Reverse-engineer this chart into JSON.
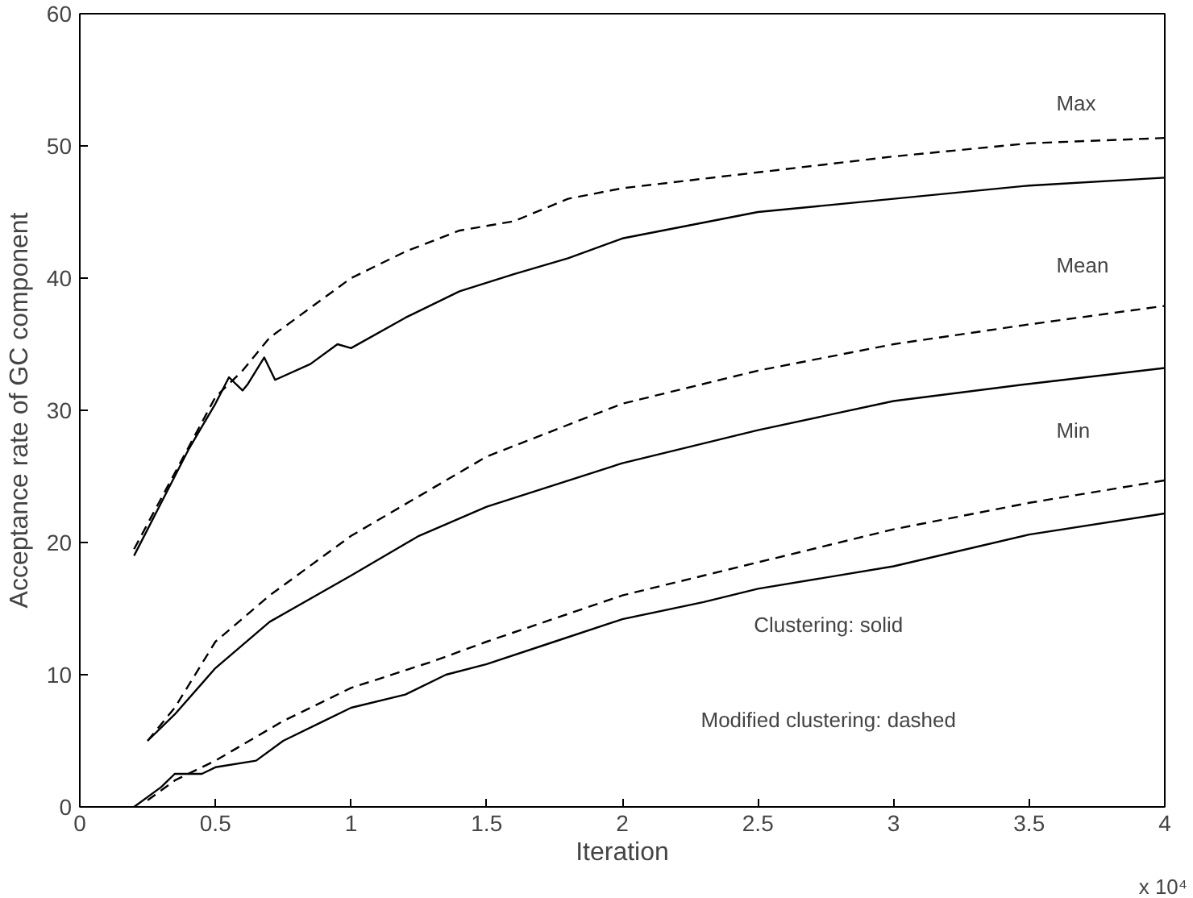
{
  "chart_data": {
    "type": "line",
    "xlabel": "Iteration",
    "ylabel": "Acceptance rate of GC component",
    "xlim": [
      0,
      4
    ],
    "ylim": [
      0,
      60
    ],
    "xticks": [
      0,
      0.5,
      1,
      1.5,
      2,
      2.5,
      3,
      3.5,
      4
    ],
    "yticks": [
      0,
      10,
      20,
      30,
      40,
      50,
      60
    ],
    "grid": false,
    "marker": "none",
    "annotations": [
      "Max",
      "Mean",
      "Min",
      "Clustering: solid",
      "Modified clustering: dashed",
      "x 10⁴"
    ],
    "series": [
      {
        "color": "#000000",
        "line_style": "solid",
        "x": [
          0.2,
          0.3,
          0.4,
          0.5,
          0.55,
          0.6,
          0.62,
          0.68,
          0.72,
          0.85,
          0.95,
          1.0,
          1.2,
          1.4,
          1.6,
          1.8,
          2.0,
          2.5,
          3.0,
          3.5,
          4.0
        ],
        "values": [
          19,
          23,
          27,
          30.5,
          32.5,
          31.5,
          32,
          34,
          32.3,
          33.5,
          35,
          34.7,
          37,
          39,
          40.3,
          41.5,
          43,
          45,
          46,
          47,
          47.6
        ]
      },
      {
        "color": "#000000",
        "line_style": "dashed",
        "x": [
          0.2,
          0.5,
          0.6,
          0.7,
          0.8,
          1.0,
          1.2,
          1.4,
          1.6,
          1.8,
          2.0,
          2.5,
          3.0,
          3.5,
          4.0
        ],
        "values": [
          19.5,
          31,
          33,
          35.5,
          37,
          40,
          42,
          43.6,
          44.3,
          46,
          46.8,
          48,
          49.2,
          50.2,
          50.6
        ]
      },
      {
        "color": "#000000",
        "line_style": "solid",
        "x": [
          0.25,
          0.35,
          0.5,
          0.7,
          1.0,
          1.25,
          1.5,
          2.0,
          2.5,
          3.0,
          3.5,
          4.0
        ],
        "values": [
          5,
          7,
          10.5,
          14,
          17.5,
          20.5,
          22.7,
          26,
          28.5,
          30.7,
          32,
          33.2
        ]
      },
      {
        "color": "#000000",
        "line_style": "dashed",
        "x": [
          0.25,
          0.35,
          0.5,
          0.7,
          1.0,
          1.25,
          1.5,
          2.0,
          2.5,
          3.0,
          3.5,
          4.0
        ],
        "values": [
          5,
          7.5,
          12.5,
          16,
          20.5,
          23.5,
          26.5,
          30.5,
          33,
          35,
          36.5,
          37.9
        ]
      },
      {
        "color": "#000000",
        "line_style": "solid",
        "x": [
          0.2,
          0.3,
          0.35,
          0.45,
          0.5,
          0.65,
          0.75,
          0.9,
          1.0,
          1.2,
          1.35,
          1.5,
          1.75,
          2.0,
          2.3,
          2.5,
          3.0,
          3.5,
          4.0
        ],
        "values": [
          0,
          1.5,
          2.5,
          2.5,
          3,
          3.5,
          5,
          6.5,
          7.5,
          8.5,
          10,
          10.8,
          12.5,
          14.2,
          15.5,
          16.5,
          18.2,
          20.6,
          22.2
        ]
      },
      {
        "color": "#000000",
        "line_style": "dashed",
        "x": [
          0.25,
          0.35,
          0.5,
          0.75,
          1.0,
          1.3,
          1.5,
          2.0,
          2.3,
          2.5,
          3.0,
          3.5,
          4.0
        ],
        "values": [
          0.5,
          2,
          3.5,
          6.5,
          9,
          11,
          12.5,
          16,
          17.5,
          18.5,
          21,
          23,
          24.7
        ]
      }
    ]
  }
}
